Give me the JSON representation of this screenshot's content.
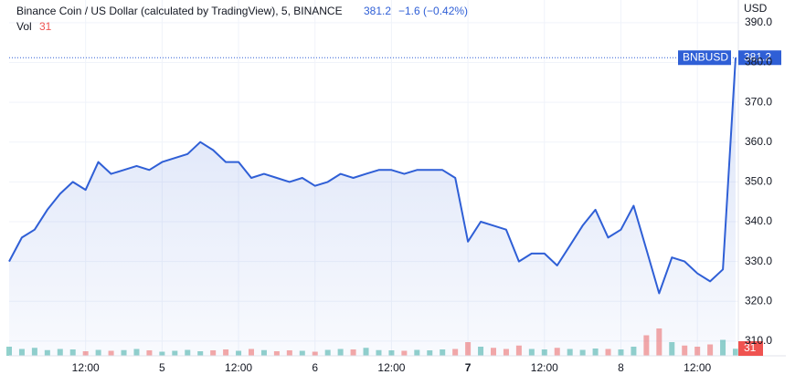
{
  "chart_data": {
    "type": "area",
    "title": "Binance Coin / US Dollar (calculated by TradingView), 5, BINANCE",
    "change": "−1.6 (−0.42%)",
    "volume_label": "Vol",
    "currency": "USD",
    "categories": [
      null,
      null,
      null,
      null,
      null,
      null,
      "12:00",
      null,
      null,
      null,
      null,
      null,
      "5",
      null,
      null,
      null,
      null,
      null,
      "12:00",
      null,
      null,
      null,
      null,
      null,
      "6",
      null,
      null,
      null,
      null,
      null,
      "12:00",
      null,
      null,
      null,
      null,
      null,
      "7",
      null,
      null,
      null,
      null,
      null,
      "12:00",
      null,
      null,
      null,
      null,
      null,
      "8",
      null,
      null,
      null,
      null,
      null,
      "12:00",
      null,
      null,
      null
    ],
    "bold_categories": [
      "7"
    ],
    "series": [
      {
        "name": "BNBUSD",
        "color": "#2f5fd6",
        "values": [
          330,
          336,
          338,
          343,
          347,
          350,
          348,
          355,
          352,
          353,
          354,
          353,
          355,
          356,
          357,
          360,
          358,
          355,
          355,
          351,
          352,
          351,
          350,
          351,
          349,
          350,
          352,
          351,
          352,
          353,
          353,
          352,
          353,
          353,
          353,
          351,
          335,
          340,
          339,
          338,
          330,
          332,
          332,
          329,
          334,
          339,
          343,
          336,
          338,
          344,
          333,
          322,
          331,
          330,
          327,
          325,
          328,
          381.2
        ]
      },
      {
        "name": "Vol",
        "axis": "y2",
        "color": "#26a69a",
        "down_color": "#ef5350",
        "values": [
          40,
          30,
          35,
          25,
          30,
          28,
          20,
          26,
          22,
          25,
          30,
          24,
          18,
          22,
          26,
          20,
          24,
          28,
          22,
          30,
          25,
          20,
          24,
          22,
          18,
          26,
          30,
          28,
          35,
          25,
          24,
          22,
          26,
          24,
          28,
          30,
          60,
          40,
          35,
          30,
          45,
          30,
          28,
          35,
          30,
          26,
          32,
          30,
          28,
          40,
          90,
          120,
          60,
          45,
          40,
          50,
          70,
          31
        ]
      }
    ],
    "ylim": [
      306.3,
      395.7
    ],
    "yticks": [
      {
        "value": 310,
        "label": "310.0"
      },
      {
        "value": 320,
        "label": "320.0"
      },
      {
        "value": 330,
        "label": "330.0"
      },
      {
        "value": 340,
        "label": "340.0"
      },
      {
        "value": 350,
        "label": "350.0"
      },
      {
        "value": 360,
        "label": "360.0"
      },
      {
        "value": 370,
        "label": "370.0"
      },
      {
        "value": 380,
        "label": "380.0"
      },
      {
        "value": 390,
        "label": "390.0"
      }
    ],
    "y2lim": [
      0,
      400
    ],
    "grid": true
  }
}
